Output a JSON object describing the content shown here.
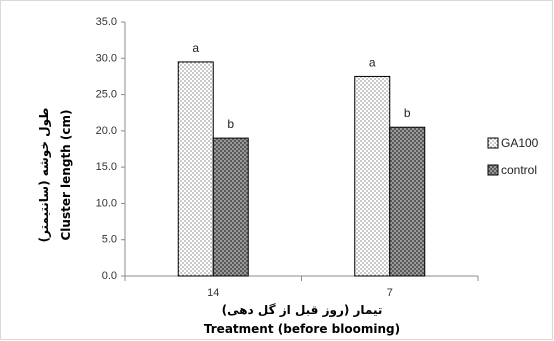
{
  "chart_data": {
    "type": "bar",
    "categories": [
      "14",
      "7"
    ],
    "series": [
      {
        "name": "GA100",
        "values": [
          29.5,
          27.5
        ],
        "letters": [
          "a",
          "a"
        ]
      },
      {
        "name": "control",
        "values": [
          19.0,
          20.5
        ],
        "letters": [
          "b",
          "b"
        ]
      }
    ],
    "ylim": [
      0,
      35
    ],
    "yticks": [
      "0.0",
      "5.0",
      "10.0",
      "15.0",
      "20.0",
      "25.0",
      "30.0",
      "35.0"
    ],
    "ylabel_fa": "طول خوشه (سانتیمتر)",
    "ylabel": "Cluster length (cm)",
    "xlabel_fa": "تیمار (روز قبل از گل دهی)",
    "xlabel": "Treatment (before blooming)",
    "grid": false,
    "legend_position": "right"
  }
}
